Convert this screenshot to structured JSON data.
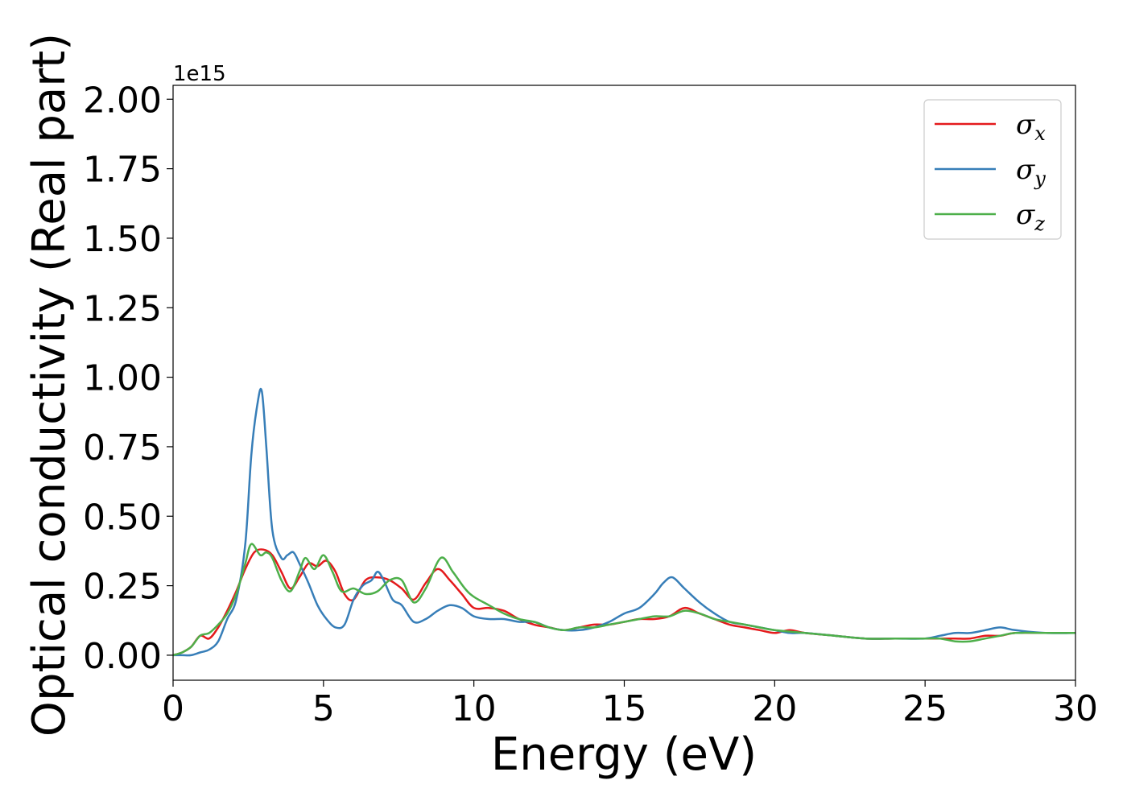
{
  "chart_data": {
    "type": "line",
    "xlabel": "Energy (eV)",
    "ylabel": "Optical conductivity (Real part)",
    "offset_text": "1e15",
    "xlim": [
      0,
      30
    ],
    "ylim": [
      -0.09,
      2.05
    ],
    "xticks": [
      0,
      5,
      10,
      15,
      20,
      25,
      30
    ],
    "yticks": [
      0.0,
      0.25,
      0.5,
      0.75,
      1.0,
      1.25,
      1.5,
      1.75,
      2.0
    ],
    "xtick_labels": [
      "0",
      "5",
      "10",
      "15",
      "20",
      "25",
      "30"
    ],
    "ytick_labels": [
      "0.00",
      "0.25",
      "0.50",
      "0.75",
      "1.00",
      "1.25",
      "1.50",
      "1.75",
      "2.00"
    ],
    "grid": false,
    "legend_position": "top-right",
    "series": [
      {
        "name": "σx",
        "symbol": "σ",
        "subscript": "x",
        "color": "#e41a1c",
        "x": [
          0,
          0.3,
          0.6,
          0.9,
          1.2,
          1.5,
          1.8,
          2.1,
          2.4,
          2.7,
          3.0,
          3.3,
          3.6,
          3.9,
          4.2,
          4.5,
          4.8,
          5.1,
          5.4,
          5.7,
          6.0,
          6.4,
          6.8,
          7.2,
          7.6,
          8.0,
          8.4,
          8.8,
          9.2,
          9.6,
          10.0,
          10.5,
          11.0,
          11.5,
          12.0,
          12.5,
          13.0,
          13.5,
          14.0,
          14.5,
          15.0,
          15.5,
          16.0,
          16.5,
          17.0,
          17.5,
          18.0,
          18.5,
          19.0,
          19.5,
          20.0,
          20.5,
          21.0,
          22.0,
          23.0,
          24.0,
          25.0,
          25.5,
          26.0,
          26.5,
          27.0,
          27.5,
          28.0,
          29.0,
          29.5,
          30.0
        ],
        "y": [
          0.0,
          0.01,
          0.03,
          0.07,
          0.06,
          0.1,
          0.16,
          0.23,
          0.31,
          0.37,
          0.38,
          0.36,
          0.3,
          0.24,
          0.28,
          0.33,
          0.32,
          0.34,
          0.3,
          0.22,
          0.2,
          0.27,
          0.28,
          0.27,
          0.24,
          0.2,
          0.26,
          0.31,
          0.27,
          0.22,
          0.17,
          0.17,
          0.16,
          0.13,
          0.11,
          0.1,
          0.09,
          0.1,
          0.11,
          0.11,
          0.12,
          0.13,
          0.13,
          0.14,
          0.17,
          0.15,
          0.13,
          0.11,
          0.1,
          0.09,
          0.08,
          0.09,
          0.08,
          0.07,
          0.06,
          0.06,
          0.06,
          0.06,
          0.06,
          0.06,
          0.07,
          0.07,
          0.08,
          0.08,
          0.08,
          0.08
        ]
      },
      {
        "name": "σy",
        "symbol": "σ",
        "subscript": "y",
        "color": "#377eb8",
        "x": [
          0,
          0.3,
          0.6,
          0.9,
          1.2,
          1.5,
          1.8,
          2.1,
          2.4,
          2.6,
          2.8,
          2.95,
          3.1,
          3.3,
          3.6,
          3.8,
          4.0,
          4.2,
          4.5,
          4.8,
          5.1,
          5.4,
          5.7,
          6.0,
          6.3,
          6.6,
          6.8,
          7.0,
          7.3,
          7.6,
          8.0,
          8.4,
          8.8,
          9.2,
          9.6,
          10.0,
          10.5,
          11.0,
          11.5,
          12.0,
          12.5,
          13.0,
          13.5,
          14.0,
          14.5,
          15.0,
          15.5,
          16.0,
          16.3,
          16.6,
          17.0,
          17.5,
          18.0,
          18.5,
          19.0,
          20.0,
          20.5,
          21.0,
          22.0,
          23.0,
          24.0,
          25.0,
          25.5,
          26.0,
          26.5,
          27.0,
          27.5,
          28.0,
          29.0,
          30.0
        ],
        "y": [
          0.0,
          0.0,
          0.0,
          0.01,
          0.02,
          0.05,
          0.13,
          0.2,
          0.4,
          0.72,
          0.9,
          0.95,
          0.75,
          0.45,
          0.35,
          0.36,
          0.37,
          0.33,
          0.26,
          0.18,
          0.13,
          0.1,
          0.11,
          0.2,
          0.25,
          0.27,
          0.3,
          0.27,
          0.2,
          0.18,
          0.12,
          0.13,
          0.16,
          0.18,
          0.17,
          0.14,
          0.13,
          0.13,
          0.12,
          0.12,
          0.1,
          0.09,
          0.09,
          0.1,
          0.12,
          0.15,
          0.17,
          0.22,
          0.26,
          0.28,
          0.24,
          0.19,
          0.15,
          0.12,
          0.11,
          0.09,
          0.08,
          0.08,
          0.07,
          0.06,
          0.06,
          0.06,
          0.07,
          0.08,
          0.08,
          0.09,
          0.1,
          0.09,
          0.08,
          0.08
        ]
      },
      {
        "name": "σz",
        "symbol": "σ",
        "subscript": "z",
        "color": "#4daf4a",
        "x": [
          0,
          0.3,
          0.6,
          0.9,
          1.2,
          1.5,
          1.8,
          2.1,
          2.4,
          2.6,
          2.9,
          3.1,
          3.3,
          3.6,
          3.9,
          4.2,
          4.4,
          4.7,
          5.0,
          5.3,
          5.6,
          6.0,
          6.4,
          6.8,
          7.2,
          7.6,
          8.0,
          8.4,
          8.9,
          9.3,
          9.7,
          10.0,
          10.5,
          11.0,
          11.5,
          12.0,
          12.5,
          13.0,
          13.5,
          14.0,
          14.5,
          15.0,
          15.5,
          16.0,
          16.5,
          17.0,
          17.5,
          18.0,
          18.5,
          19.0,
          19.5,
          20.0,
          21.0,
          22.0,
          23.0,
          24.0,
          25.0,
          25.5,
          26.0,
          26.5,
          27.0,
          27.5,
          28.0,
          29.0,
          30.0
        ],
        "y": [
          0.0,
          0.01,
          0.03,
          0.07,
          0.08,
          0.11,
          0.15,
          0.22,
          0.33,
          0.4,
          0.36,
          0.37,
          0.35,
          0.27,
          0.23,
          0.3,
          0.35,
          0.31,
          0.36,
          0.3,
          0.23,
          0.24,
          0.22,
          0.23,
          0.27,
          0.27,
          0.19,
          0.24,
          0.35,
          0.3,
          0.24,
          0.21,
          0.18,
          0.15,
          0.13,
          0.12,
          0.1,
          0.09,
          0.1,
          0.1,
          0.11,
          0.12,
          0.13,
          0.14,
          0.14,
          0.16,
          0.15,
          0.13,
          0.12,
          0.11,
          0.1,
          0.09,
          0.08,
          0.07,
          0.06,
          0.06,
          0.06,
          0.06,
          0.05,
          0.05,
          0.06,
          0.07,
          0.08,
          0.08,
          0.08
        ]
      }
    ]
  }
}
